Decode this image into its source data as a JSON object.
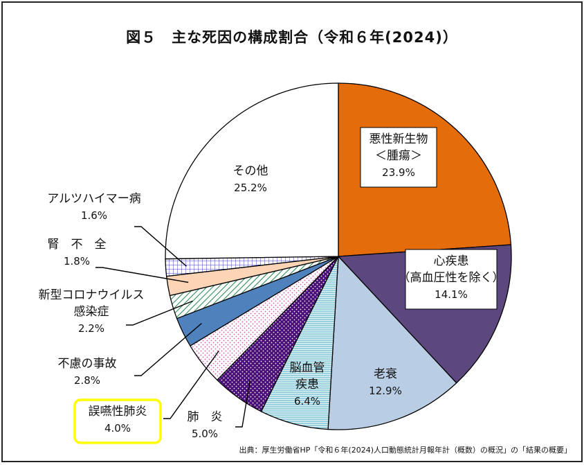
{
  "title": "図５　主な死因の構成割合（令和６年(2024)）",
  "source": "出典：厚生労働省HP「令和６年(2024)人口動態統計月報年計（概数）の概況」の「結果の概要」",
  "chart_data": {
    "type": "pie",
    "start_angle_deg": 0,
    "direction": "clockwise",
    "slices": [
      {
        "name": "悪性新生物",
        "sub": "＜腫瘍＞",
        "value": 23.9,
        "pct_label": "23.9%",
        "color": "#e46c0a",
        "pattern": "solid",
        "label_box": true
      },
      {
        "name": "心疾患",
        "sub": "（高血圧性を除く）",
        "value": 14.1,
        "pct_label": "14.1%",
        "color": "#5c477e",
        "pattern": "solid",
        "label_box": true
      },
      {
        "name": "老衰",
        "sub": "",
        "value": 12.9,
        "pct_label": "12.9%",
        "color": "#b9cde5",
        "pattern": "solid",
        "label_box": false
      },
      {
        "name": "脳血管",
        "sub": "疾患",
        "value": 6.4,
        "pct_label": "6.4%",
        "color": "#d8eef2",
        "pattern": "hlines",
        "pattern_color": "#4bacc6",
        "label_box": false
      },
      {
        "name": "肺　炎",
        "sub": "",
        "value": 5.0,
        "pct_label": "5.0%",
        "color": "#4b0f7a",
        "pattern": "dots-dark",
        "pattern_color": "#ffffff",
        "label_box": false
      },
      {
        "name": "誤嚥性肺炎",
        "sub": "",
        "value": 4.0,
        "pct_label": "4.0%",
        "color": "#ffffff",
        "pattern": "dots",
        "pattern_color": "#d05bb0",
        "label_box": false,
        "highlight": "#ffff00"
      },
      {
        "name": "不慮の事故",
        "sub": "",
        "value": 2.8,
        "pct_label": "2.8%",
        "color": "#4f81bd",
        "pattern": "solid",
        "label_box": false
      },
      {
        "name": "新型コロナウイルス",
        "sub": "感染症",
        "value": 2.2,
        "pct_label": "2.2%",
        "color": "#ffffff",
        "pattern": "diag",
        "pattern_color": "#2e8b57",
        "label_box": false
      },
      {
        "name": "腎　不　全",
        "sub": "",
        "value": 1.8,
        "pct_label": "1.8%",
        "color": "#fbd5b5",
        "pattern": "solid",
        "label_box": false
      },
      {
        "name": "アルツハイマー病",
        "sub": "",
        "value": 1.6,
        "pct_label": "1.6%",
        "color": "#ffffff",
        "pattern": "grid",
        "pattern_color": "#3f3fbf",
        "label_box": false
      },
      {
        "name": "その他",
        "sub": "",
        "value": 25.2,
        "pct_label": "25.2%",
        "color": "#ffffff",
        "pattern": "solid",
        "label_box": false
      }
    ]
  }
}
